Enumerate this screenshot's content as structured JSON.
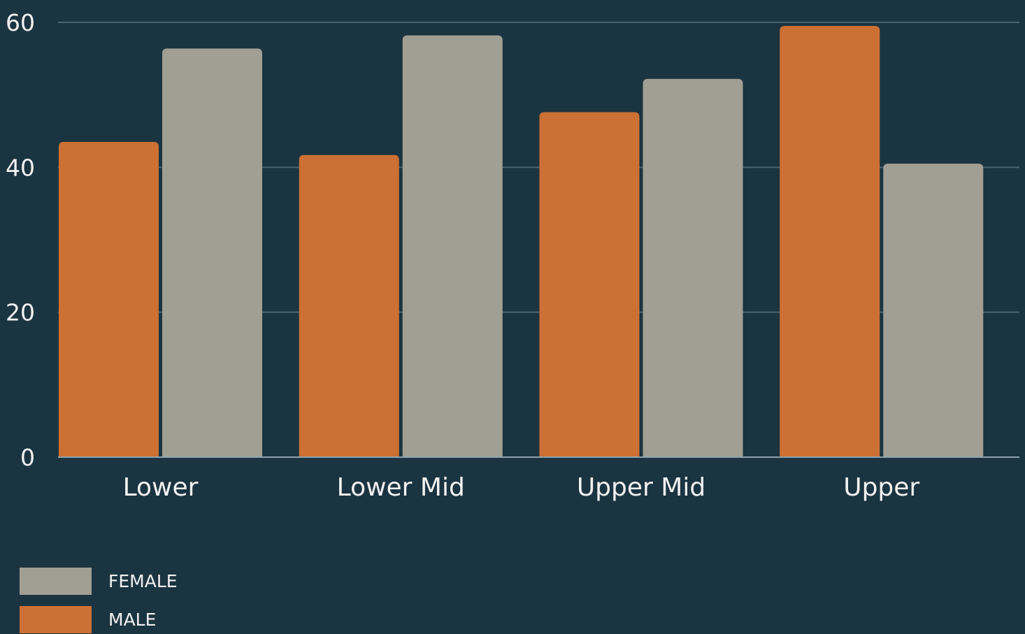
{
  "chart_data": {
    "type": "bar",
    "categories": [
      "Lower",
      "Lower Mid",
      "Upper Mid",
      "Upper"
    ],
    "series": [
      {
        "name": "MALE",
        "color": "#cc7033",
        "values": [
          43.5,
          41.7,
          47.6,
          59.5
        ]
      },
      {
        "name": "FEMALE",
        "color": "#a19f93",
        "values": [
          56.4,
          58.2,
          52.2,
          40.5
        ]
      }
    ],
    "yticks": [
      0,
      20,
      40,
      60
    ],
    "ylim": [
      0,
      60
    ],
    "grid": true,
    "legend": {
      "placement": "bottom-left",
      "entries": [
        {
          "label": "FEMALE",
          "color": "#a19f93"
        },
        {
          "label": "MALE",
          "color": "#cc7033"
        }
      ]
    },
    "colors": {
      "background": "#1b3441",
      "gridline": "#4a6470",
      "baseline": "#8fa3ad",
      "text": "#f2f2f2"
    }
  }
}
